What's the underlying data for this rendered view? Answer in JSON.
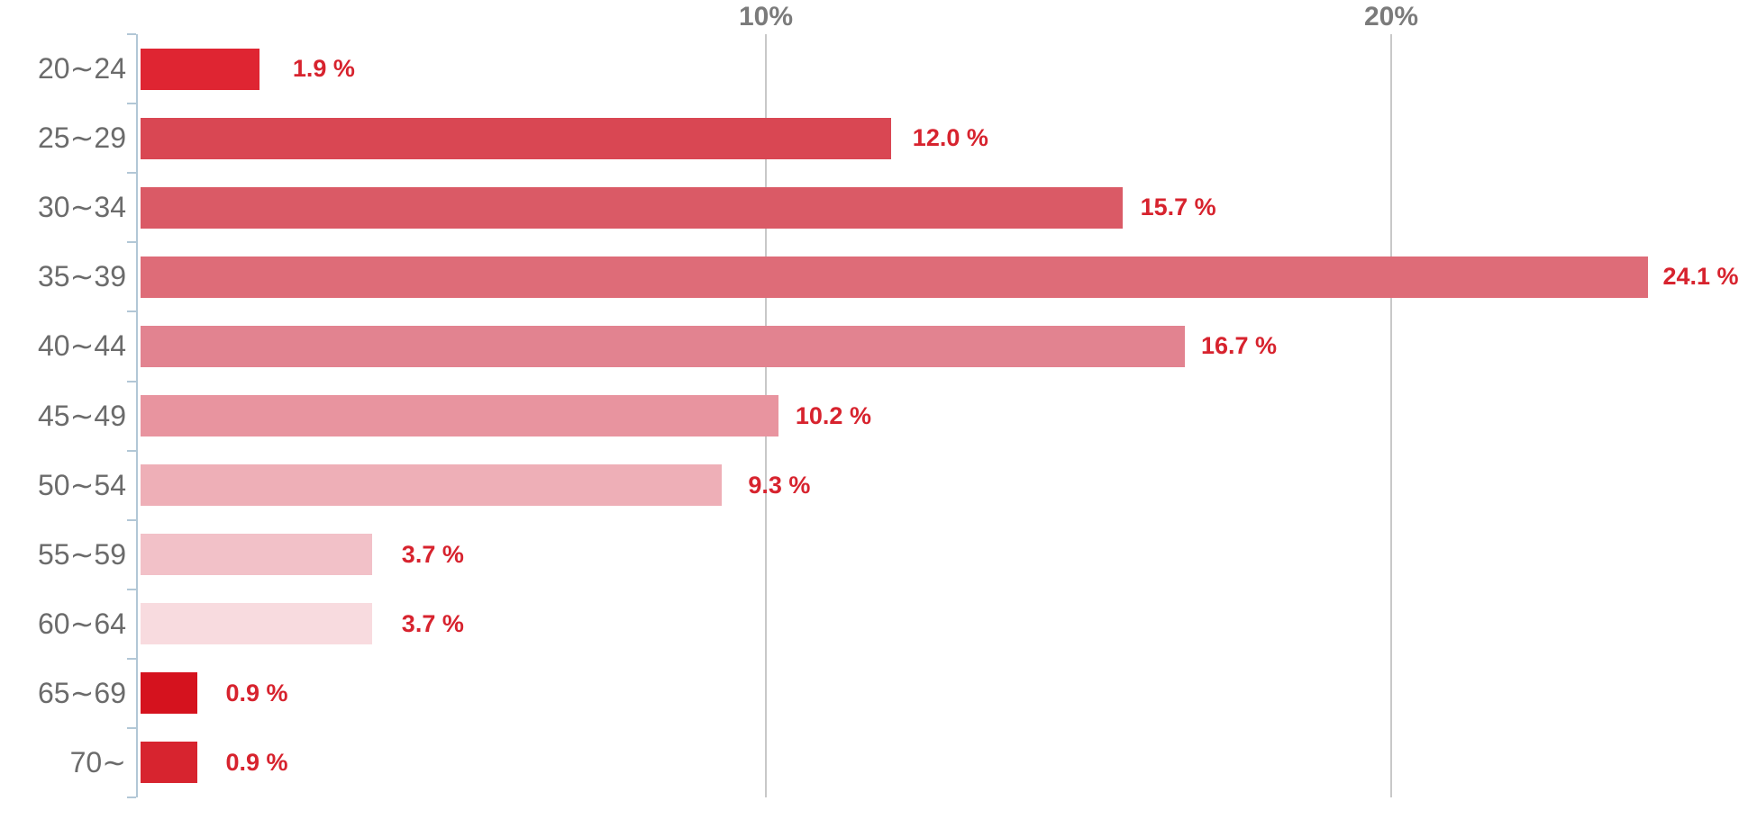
{
  "chart_data": {
    "type": "bar",
    "orientation": "horizontal",
    "title": "",
    "xlabel": "",
    "ylabel": "",
    "categories": [
      "20∼24",
      "25∼29",
      "30∼34",
      "35∼39",
      "40∼44",
      "45∼49",
      "50∼54",
      "55∼59",
      "60∼64",
      "65∼69",
      "70∼"
    ],
    "values": [
      1.9,
      12.0,
      15.7,
      24.1,
      16.7,
      10.2,
      9.3,
      3.7,
      3.7,
      0.9,
      0.9
    ],
    "value_labels": [
      "1.9 %",
      "12.0 %",
      "15.7 %",
      "24.1 %",
      "16.7 %",
      "10.2 %",
      "9.3 %",
      "3.7 %",
      "3.7 %",
      "0.9 %",
      "0.9 %"
    ],
    "bar_colors": [
      "#df2532",
      "#d94753",
      "#da5a66",
      "#de6c78",
      "#e28390",
      "#e8949f",
      "#eeafb7",
      "#f2c1c8",
      "#f8dbdf",
      "#d5121e",
      "#d7242f"
    ],
    "x_axis": {
      "ticks": [
        {
          "label": "10%",
          "value": 10
        },
        {
          "label": "20%",
          "value": 20
        }
      ],
      "range": [
        0,
        25.9
      ],
      "grid": true
    },
    "legend": null,
    "colors": {
      "value_label": "#d7232e",
      "category_label": "#6b6b6b",
      "axis_tick_label": "#7b7b7b",
      "gridline": "#c8c8c8",
      "axis_line": "#b2c7d6"
    }
  }
}
